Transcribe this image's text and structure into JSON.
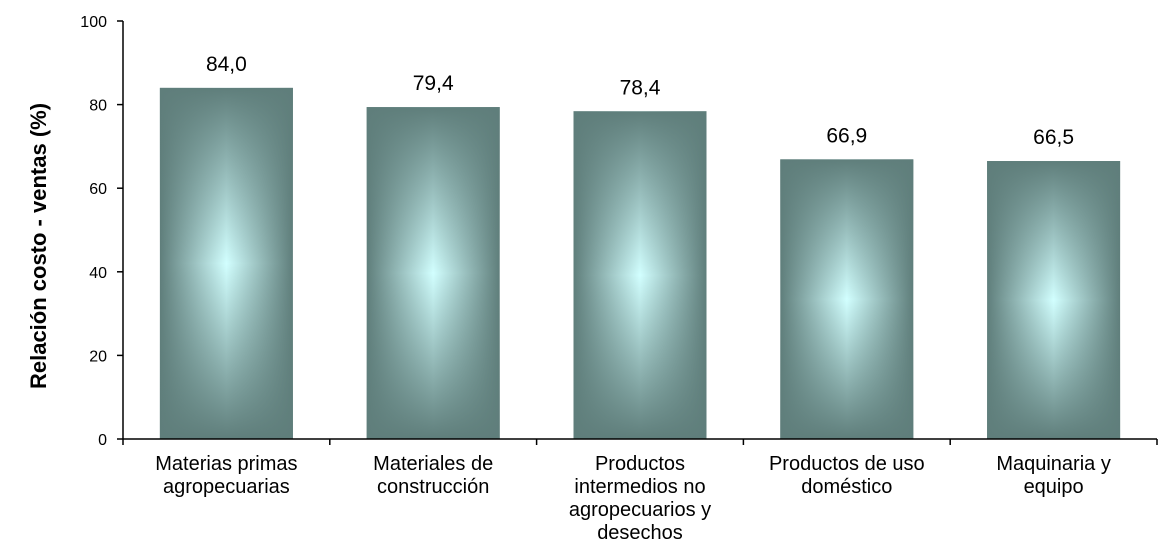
{
  "chart_data": {
    "type": "bar",
    "title": "",
    "xlabel": "",
    "ylabel": "Relación costo - ventas (%)",
    "categories": [
      [
        "Materias primas",
        "agropecuarias"
      ],
      [
        "Materiales de",
        "construcción"
      ],
      [
        "Productos",
        "intermedios no",
        "agropecuarios y",
        "desechos"
      ],
      [
        "Productos de uso",
        "doméstico"
      ],
      [
        "Maquinaria y",
        "equipo"
      ]
    ],
    "values": [
      84.0,
      79.4,
      78.4,
      66.9,
      66.5
    ],
    "value_labels": [
      "84,0",
      "79,4",
      "78,4",
      "66,9",
      "66,5"
    ],
    "ylim": [
      0,
      100
    ],
    "yticks": [
      0,
      20,
      40,
      60,
      80,
      100
    ],
    "grid": false,
    "legend": "none",
    "colors": {
      "bar_edge": "#5f7e7b",
      "bar_center": "#d2ffff",
      "axis": "#000000"
    }
  }
}
